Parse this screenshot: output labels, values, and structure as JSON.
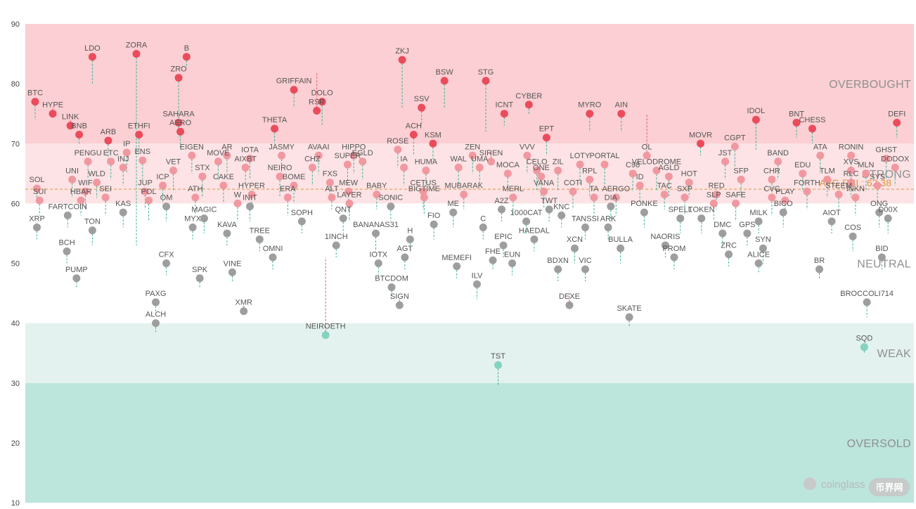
{
  "chart_data": {
    "type": "scatter",
    "title": "",
    "xlabel": "",
    "ylabel": "",
    "ylim": [
      10,
      90
    ],
    "yticks": [
      10,
      20,
      30,
      40,
      50,
      60,
      70,
      80,
      90
    ],
    "grid": false,
    "zones": [
      {
        "name": "OVERSOLD",
        "from": 10,
        "to": 30,
        "color": "#bce5dc"
      },
      {
        "name": "WEAK",
        "from": 30,
        "to": 40,
        "color": "#e3f2ef"
      },
      {
        "name": "NEUTRAL",
        "from": 40,
        "to": 60,
        "color": "#ffffff"
      },
      {
        "name": "STRONG",
        "from": 60,
        "to": 70,
        "color": "#fde3e5"
      },
      {
        "name": "OVERBOUGHT",
        "from": 70,
        "to": 90,
        "color": "#fbcfd3"
      }
    ],
    "average": {
      "label": "AVG RSI : 62.38",
      "value": 62.38,
      "color": "#e0953f"
    },
    "watermark": {
      "text": "coinglass",
      "sub": "币界网"
    },
    "colors": {
      "overbought": "#ea4455",
      "strong": "#f0939c",
      "neutral": "#999999",
      "weak": "#7fd1bd",
      "up": "#e85a68",
      "down": "#3ab49a"
    },
    "points": [
      {
        "name": "BTC",
        "x": 0.8,
        "y": 77,
        "p": 74
      },
      {
        "name": "HYPE",
        "x": 2.8,
        "y": 75,
        "p": 76
      },
      {
        "name": "LINK",
        "x": 4.8,
        "y": 73,
        "p": 74
      },
      {
        "name": "BNB",
        "x": 5.8,
        "y": 71.5,
        "p": 70
      },
      {
        "name": "PENGU",
        "x": 6.8,
        "y": 67,
        "p": 64
      },
      {
        "name": "SOL",
        "x": 1,
        "y": 62.5,
        "p": 60
      },
      {
        "name": "UNI",
        "x": 5,
        "y": 64,
        "p": 61
      },
      {
        "name": "SUI",
        "x": 1.3,
        "y": 60.5,
        "p": 58
      },
      {
        "name": "FARTCOIN",
        "x": 4.5,
        "y": 58,
        "p": 56
      },
      {
        "name": "XRP",
        "x": 1,
        "y": 56,
        "p": 54
      },
      {
        "name": "BCH",
        "x": 4.4,
        "y": 52,
        "p": 50
      },
      {
        "name": "PUMP",
        "x": 5.5,
        "y": 47.5,
        "p": 46
      },
      {
        "name": "WIF",
        "x": 6.5,
        "y": 62,
        "p": 59
      },
      {
        "name": "HBAR",
        "x": 6,
        "y": 60.5,
        "p": 58
      },
      {
        "name": "TON",
        "x": 7.3,
        "y": 55.5,
        "p": 53
      },
      {
        "name": "LDO",
        "x": 7.3,
        "y": 84.5,
        "p": 80
      },
      {
        "name": "WLD",
        "x": 7.8,
        "y": 63.5,
        "p": 61
      },
      {
        "name": "SEI",
        "x": 8.8,
        "y": 61,
        "p": 58
      },
      {
        "name": "ARB",
        "x": 9.1,
        "y": 70.5,
        "p": 67
      },
      {
        "name": "ETC",
        "x": 9.4,
        "y": 67,
        "p": 64
      },
      {
        "name": "INJ",
        "x": 10.8,
        "y": 66,
        "p": 63
      },
      {
        "name": "KAS",
        "x": 10.8,
        "y": 58.5,
        "p": 56
      },
      {
        "name": "IP",
        "x": 11.2,
        "y": 68.5,
        "p": 65
      },
      {
        "name": "ENS",
        "x": 13,
        "y": 67.2,
        "p": 64
      },
      {
        "name": "ZORA",
        "x": 12.3,
        "y": 85,
        "p": 53
      },
      {
        "name": "ETHFI",
        "x": 12.6,
        "y": 71.5,
        "p": 68
      },
      {
        "name": "JUP",
        "x": 13.3,
        "y": 62,
        "p": 59
      },
      {
        "name": "POL",
        "x": 13.7,
        "y": 60.5,
        "p": 57
      },
      {
        "name": "ICP",
        "x": 15.3,
        "y": 63,
        "p": 60
      },
      {
        "name": "OM",
        "x": 15.7,
        "y": 59.5,
        "p": 57
      },
      {
        "name": "CFX",
        "x": 15.7,
        "y": 50,
        "p": 48
      },
      {
        "name": "PAXG",
        "x": 14.5,
        "y": 43.5,
        "p": 42
      },
      {
        "name": "ALCH",
        "x": 14.5,
        "y": 40,
        "p": 38.5
      },
      {
        "name": "B",
        "x": 18,
        "y": 84.5,
        "p": 83
      },
      {
        "name": "ZRO",
        "x": 17.1,
        "y": 81,
        "p": 73
      },
      {
        "name": "SAHARA",
        "x": 17.1,
        "y": 73.5,
        "p": 71
      },
      {
        "name": "AERO",
        "x": 17.3,
        "y": 72,
        "p": 69
      },
      {
        "name": "VET",
        "x": 16.5,
        "y": 65.5,
        "p": 62
      },
      {
        "name": "EIGEN",
        "x": 18.6,
        "y": 68,
        "p": 65
      },
      {
        "name": "ATH",
        "x": 19,
        "y": 61,
        "p": 58
      },
      {
        "name": "MAGIC",
        "x": 20,
        "y": 57.5,
        "p": 55
      },
      {
        "name": "MYX",
        "x": 18.7,
        "y": 56,
        "p": 54
      },
      {
        "name": "SPK",
        "x": 19.5,
        "y": 47.5,
        "p": 46
      },
      {
        "name": "STX",
        "x": 19.8,
        "y": 64.5,
        "p": 61
      },
      {
        "name": "MOVE",
        "x": 21.6,
        "y": 67,
        "p": 64
      },
      {
        "name": "AR",
        "x": 22.6,
        "y": 68,
        "p": 65
      },
      {
        "name": "CAKE",
        "x": 22.2,
        "y": 63,
        "p": 60
      },
      {
        "name": "KAVA",
        "x": 22.6,
        "y": 55,
        "p": 53
      },
      {
        "name": "W",
        "x": 23.8,
        "y": 60,
        "p": 57
      },
      {
        "name": "AIXBT",
        "x": 24.7,
        "y": 66,
        "p": 63
      },
      {
        "name": "IOTA",
        "x": 25.2,
        "y": 67.5,
        "p": 64
      },
      {
        "name": "HYPER",
        "x": 25.4,
        "y": 61.5,
        "p": 59
      },
      {
        "name": "INIT",
        "x": 25.2,
        "y": 59.5,
        "p": 57
      },
      {
        "name": "TREE",
        "x": 26.3,
        "y": 54,
        "p": 52
      },
      {
        "name": "VINE",
        "x": 23.2,
        "y": 48.5,
        "p": 47
      },
      {
        "name": "XMR",
        "x": 24.5,
        "y": 42,
        "p": 43
      },
      {
        "name": "OMNI",
        "x": 27.8,
        "y": 51,
        "p": 49
      },
      {
        "name": "JASMY",
        "x": 28.8,
        "y": 68,
        "p": 65
      },
      {
        "name": "THETA",
        "x": 28,
        "y": 72.5,
        "p": 70
      },
      {
        "name": "NEIRO",
        "x": 28.6,
        "y": 64.5,
        "p": 61
      },
      {
        "name": "ERA",
        "x": 29.5,
        "y": 61,
        "p": 58
      },
      {
        "name": "GRIFFAIN",
        "x": 30.2,
        "y": 79,
        "p": 76
      },
      {
        "name": "BOME",
        "x": 30.2,
        "y": 63,
        "p": 60
      },
      {
        "name": "SOPH",
        "x": 31.1,
        "y": 57,
        "p": 55
      },
      {
        "name": "CHZ",
        "x": 32.3,
        "y": 66,
        "p": 63
      },
      {
        "name": "AVAAI",
        "x": 33,
        "y": 68,
        "p": 65
      },
      {
        "name": "DOLO",
        "x": 33.4,
        "y": 77,
        "p": 73
      },
      {
        "name": "RSR",
        "x": 32.8,
        "y": 75.5,
        "p": 82
      },
      {
        "name": "FXS",
        "x": 34.3,
        "y": 63.5,
        "p": 61
      },
      {
        "name": "ALT",
        "x": 34.5,
        "y": 61,
        "p": 59
      },
      {
        "name": "NEIROETH",
        "x": 33.8,
        "y": 38,
        "p": 51
      },
      {
        "name": "1INCH",
        "x": 35,
        "y": 53,
        "p": 51
      },
      {
        "name": "QNT",
        "x": 35.8,
        "y": 57.5,
        "p": 55
      },
      {
        "name": "MEW",
        "x": 36.4,
        "y": 62,
        "p": 59
      },
      {
        "name": "LAYER",
        "x": 36.5,
        "y": 60,
        "p": 57
      },
      {
        "name": "HIPPO",
        "x": 37,
        "y": 68,
        "p": 65
      },
      {
        "name": "SUPER",
        "x": 36.3,
        "y": 66.5,
        "p": 63
      },
      {
        "name": "EGLD",
        "x": 38,
        "y": 67,
        "p": 64
      },
      {
        "name": "BANANAS31",
        "x": 39.5,
        "y": 55,
        "p": 52
      },
      {
        "name": "BABY",
        "x": 39.6,
        "y": 61.5,
        "p": 59
      },
      {
        "name": "SONIC",
        "x": 41.2,
        "y": 59.5,
        "p": 57
      },
      {
        "name": "IOTX",
        "x": 39.8,
        "y": 50,
        "p": 48
      },
      {
        "name": "BTCDOM",
        "x": 41.3,
        "y": 46,
        "p": 44
      },
      {
        "name": "SIGN",
        "x": 42.2,
        "y": 43,
        "p": 44
      },
      {
        "name": "AGT",
        "x": 42.8,
        "y": 51,
        "p": 49
      },
      {
        "name": "H",
        "x": 43.4,
        "y": 54,
        "p": 52
      },
      {
        "name": "ROSE",
        "x": 42,
        "y": 69,
        "p": 66
      },
      {
        "name": "IA",
        "x": 42.7,
        "y": 66,
        "p": 63
      },
      {
        "name": "ACH",
        "x": 43.8,
        "y": 71.5,
        "p": 68
      },
      {
        "name": "ZKJ",
        "x": 42.5,
        "y": 84,
        "p": 76
      },
      {
        "name": "SSV",
        "x": 44.7,
        "y": 76,
        "p": 73
      },
      {
        "name": "KSM",
        "x": 46,
        "y": 70,
        "p": 67
      },
      {
        "name": "HUMA",
        "x": 45.2,
        "y": 65.5,
        "p": 62
      },
      {
        "name": "CETUS",
        "x": 44.9,
        "y": 62,
        "p": 59
      },
      {
        "name": "BIGTIME",
        "x": 45,
        "y": 61,
        "p": 58
      },
      {
        "name": "FIO",
        "x": 46.1,
        "y": 56.5,
        "p": 54
      },
      {
        "name": "BSW",
        "x": 47.3,
        "y": 80.5,
        "p": 76
      },
      {
        "name": "ME",
        "x": 48.3,
        "y": 58.5,
        "p": 56
      },
      {
        "name": "MUBARAK",
        "x": 49.5,
        "y": 61.5,
        "p": 59
      },
      {
        "name": "WAL",
        "x": 48.9,
        "y": 66,
        "p": 63
      },
      {
        "name": "UMA",
        "x": 51.3,
        "y": 66,
        "p": 63
      },
      {
        "name": "ZEN",
        "x": 50.5,
        "y": 68,
        "p": 65
      },
      {
        "name": "MEMEFI",
        "x": 48.7,
        "y": 49.5,
        "p": 47.5
      },
      {
        "name": "STG",
        "x": 52,
        "y": 80.5,
        "p": 72
      },
      {
        "name": "C",
        "x": 51.7,
        "y": 56,
        "p": 54
      },
      {
        "name": "ILV",
        "x": 51,
        "y": 46.5,
        "p": 44
      },
      {
        "name": "TST",
        "x": 53.4,
        "y": 33,
        "p": 29.5
      },
      {
        "name": "SIREN",
        "x": 52.6,
        "y": 67,
        "p": 68.5
      },
      {
        "name": "MOCA",
        "x": 54.5,
        "y": 65,
        "p": 62
      },
      {
        "name": "A2Z",
        "x": 53.8,
        "y": 59,
        "p": 57
      },
      {
        "name": "MERL",
        "x": 55.1,
        "y": 61,
        "p": 58
      },
      {
        "name": "EPIC",
        "x": 54,
        "y": 53,
        "p": 51
      },
      {
        "name": "FHE",
        "x": 52.8,
        "y": 50.5,
        "p": 49
      },
      {
        "name": "EUN",
        "x": 55,
        "y": 50,
        "p": 48
      },
      {
        "name": "ICNT",
        "x": 54.1,
        "y": 75,
        "p": 73
      },
      {
        "name": "1000CAT",
        "x": 56.6,
        "y": 57,
        "p": 55
      },
      {
        "name": "HAEDAL",
        "x": 57.5,
        "y": 54,
        "p": 52
      },
      {
        "name": "CYBER",
        "x": 56.9,
        "y": 76.5,
        "p": 75
      },
      {
        "name": "VVV",
        "x": 56.7,
        "y": 68,
        "p": 65
      },
      {
        "name": "CELO",
        "x": 57.8,
        "y": 65.5,
        "p": 62
      },
      {
        "name": "ONE",
        "x": 58.3,
        "y": 64.5,
        "p": 61
      },
      {
        "name": "VANA",
        "x": 58.6,
        "y": 62,
        "p": 59
      },
      {
        "name": "TWT",
        "x": 59.2,
        "y": 59,
        "p": 57
      },
      {
        "name": "EPT",
        "x": 58.9,
        "y": 71,
        "p": 68
      },
      {
        "name": "ZIL",
        "x": 60.2,
        "y": 65.5,
        "p": 62
      },
      {
        "name": "KNC",
        "x": 60.6,
        "y": 58,
        "p": 56
      },
      {
        "name": "BDXN",
        "x": 60.2,
        "y": 49,
        "p": 47
      },
      {
        "name": "DEXE",
        "x": 61.5,
        "y": 43,
        "p": 45
      },
      {
        "name": "LOTY",
        "x": 62.7,
        "y": 66.5,
        "p": 63
      },
      {
        "name": "COTI",
        "x": 61.9,
        "y": 62,
        "p": 59
      },
      {
        "name": "TANSSI",
        "x": 63.3,
        "y": 56,
        "p": 54
      },
      {
        "name": "XCN",
        "x": 62.1,
        "y": 52.5,
        "p": 50
      },
      {
        "name": "VIC",
        "x": 63.3,
        "y": 49,
        "p": 47
      },
      {
        "name": "MYRO",
        "x": 63.8,
        "y": 75,
        "p": 72
      },
      {
        "name": "RPL",
        "x": 63.8,
        "y": 64,
        "p": 61
      },
      {
        "name": "PORTAL",
        "x": 65.5,
        "y": 66.5,
        "p": 63
      },
      {
        "name": "TA",
        "x": 64.3,
        "y": 61,
        "p": 58
      },
      {
        "name": "AERGO",
        "x": 66.8,
        "y": 61,
        "p": 58
      },
      {
        "name": "ARK",
        "x": 65.9,
        "y": 56,
        "p": 54
      },
      {
        "name": "DIA",
        "x": 66.2,
        "y": 59.5,
        "p": 57
      },
      {
        "name": "BULLA",
        "x": 67.3,
        "y": 52.5,
        "p": 50
      },
      {
        "name": "SKATE",
        "x": 68.3,
        "y": 41,
        "p": 39.5
      },
      {
        "name": "AIN",
        "x": 67.4,
        "y": 75,
        "p": 72
      },
      {
        "name": "C98",
        "x": 68.7,
        "y": 65,
        "p": 62
      },
      {
        "name": "ID",
        "x": 69.5,
        "y": 63,
        "p": 60
      },
      {
        "name": "OL",
        "x": 70.3,
        "y": 68,
        "p": 75
      },
      {
        "name": "VELODROME",
        "x": 71.4,
        "y": 65.5,
        "p": 62
      },
      {
        "name": "PONKE",
        "x": 70,
        "y": 58.5,
        "p": 56
      },
      {
        "name": "NAORIS",
        "x": 72.4,
        "y": 53,
        "p": 51
      },
      {
        "name": "PROM",
        "x": 73.4,
        "y": 51,
        "p": 49
      },
      {
        "name": "AGLD",
        "x": 72.8,
        "y": 64.5,
        "p": 61
      },
      {
        "name": "TAC",
        "x": 72.3,
        "y": 61.5,
        "p": 59
      },
      {
        "name": "HOT",
        "x": 75.1,
        "y": 63.5,
        "p": 61
      },
      {
        "name": "SXP",
        "x": 74.6,
        "y": 61,
        "p": 58
      },
      {
        "name": "SPELL",
        "x": 74.1,
        "y": 57.5,
        "p": 55
      },
      {
        "name": "MOVR",
        "x": 76.4,
        "y": 70,
        "p": 68
      },
      {
        "name": "TOKEN",
        "x": 76.5,
        "y": 57.5,
        "p": 55
      },
      {
        "name": "SLP",
        "x": 77.9,
        "y": 60,
        "p": 57
      },
      {
        "name": "RED",
        "x": 78.2,
        "y": 61.5,
        "p": 59
      },
      {
        "name": "DMC",
        "x": 78.9,
        "y": 55,
        "p": 53
      },
      {
        "name": "SAFE",
        "x": 80.4,
        "y": 60,
        "p": 57
      },
      {
        "name": "JST",
        "x": 79.2,
        "y": 67,
        "p": 64
      },
      {
        "name": "CGPT",
        "x": 80.3,
        "y": 69.5,
        "p": 66
      },
      {
        "name": "SFP",
        "x": 81,
        "y": 64,
        "p": 61
      },
      {
        "name": "ZRC",
        "x": 79.6,
        "y": 51.5,
        "p": 49.5
      },
      {
        "name": "GPS",
        "x": 81.7,
        "y": 55,
        "p": 53
      },
      {
        "name": "MILK",
        "x": 83,
        "y": 57,
        "p": 55
      },
      {
        "name": "ALICE",
        "x": 83,
        "y": 50,
        "p": 48.5
      },
      {
        "name": "SYN",
        "x": 83.5,
        "y": 52.5,
        "p": 50
      },
      {
        "name": "IDOL",
        "x": 82.7,
        "y": 74,
        "p": 69
      },
      {
        "name": "BAND",
        "x": 85.2,
        "y": 67,
        "p": 64
      },
      {
        "name": "CHR",
        "x": 84.5,
        "y": 64,
        "p": 61
      },
      {
        "name": "CVC",
        "x": 84.5,
        "y": 61,
        "p": 58
      },
      {
        "name": "PLAY",
        "x": 86,
        "y": 60.5,
        "p": 58
      },
      {
        "name": "BICO",
        "x": 85.8,
        "y": 58.5,
        "p": 56
      },
      {
        "name": "BNT",
        "x": 87.3,
        "y": 73.5,
        "p": 71
      },
      {
        "name": "EDU",
        "x": 88,
        "y": 65,
        "p": 62
      },
      {
        "name": "FORTH",
        "x": 88.5,
        "y": 62,
        "p": 59
      },
      {
        "name": "CHESS",
        "x": 89.1,
        "y": 72.5,
        "p": 70
      },
      {
        "name": "ATA",
        "x": 90,
        "y": 68,
        "p": 65
      },
      {
        "name": "TLM",
        "x": 90.8,
        "y": 64,
        "p": 61
      },
      {
        "name": "BR",
        "x": 89.9,
        "y": 49,
        "p": 47.5
      },
      {
        "name": "AIOT",
        "x": 91.3,
        "y": 57,
        "p": 55
      },
      {
        "name": "STEEM",
        "x": 92.1,
        "y": 61.5,
        "p": 59
      },
      {
        "name": "RONIN",
        "x": 93.5,
        "y": 68,
        "p": 65
      },
      {
        "name": "XVS",
        "x": 93.5,
        "y": 65.5,
        "p": 62
      },
      {
        "name": "RLC",
        "x": 93.5,
        "y": 63.5,
        "p": 61
      },
      {
        "name": "MLN",
        "x": 95.2,
        "y": 65,
        "p": 62
      },
      {
        "name": "INKN",
        "x": 94,
        "y": 61,
        "p": 58
      },
      {
        "name": "SYS",
        "x": 96.5,
        "y": 63,
        "p": 60
      },
      {
        "name": "COS",
        "x": 93.7,
        "y": 54.5,
        "p": 52
      },
      {
        "name": "BROCCOLI714",
        "x": 95.3,
        "y": 43.5,
        "p": 41
      },
      {
        "name": "SQD",
        "x": 95,
        "y": 36,
        "p": 35
      },
      {
        "name": "ONG",
        "x": 96.7,
        "y": 58.5,
        "p": 56
      },
      {
        "name": "D00X",
        "x": 97.7,
        "y": 57.5,
        "p": 55
      },
      {
        "name": "BID",
        "x": 97,
        "y": 51,
        "p": 49
      },
      {
        "name": "GHST",
        "x": 97.5,
        "y": 67.5,
        "p": 64
      },
      {
        "name": "DODOX",
        "x": 98.5,
        "y": 66,
        "p": 63
      },
      {
        "name": "DEFI",
        "x": 98.7,
        "y": 73.5,
        "p": 71
      }
    ]
  }
}
